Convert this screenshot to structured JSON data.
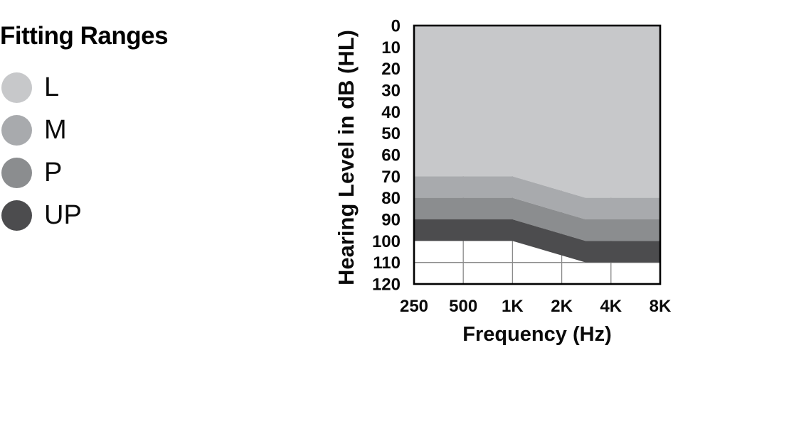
{
  "title": "Fitting Ranges",
  "legend": {
    "items": [
      {
        "label": "L",
        "color": "#c7c8ca"
      },
      {
        "label": "M",
        "color": "#a8aaad"
      },
      {
        "label": "P",
        "color": "#8b8d8f"
      },
      {
        "label": "UP",
        "color": "#4c4c4e"
      }
    ]
  },
  "chart_data": {
    "type": "area",
    "title": "Fitting Ranges",
    "xlabel": "Frequency (Hz)",
    "ylabel": "Hearing Level in dB (HL)",
    "x_categories": [
      "250",
      "500",
      "1K",
      "2K",
      "4K",
      "8K"
    ],
    "x_freqs_hz": [
      250,
      500,
      1000,
      2000,
      4000,
      8000
    ],
    "x_scale": "log2",
    "y_ticks": [
      0,
      10,
      20,
      30,
      40,
      50,
      60,
      70,
      80,
      90,
      100,
      110,
      120
    ],
    "ylim": [
      0,
      120
    ],
    "y_axis_inverted": true,
    "band_breakpoints_hz": [
      250,
      1000,
      2800,
      8000
    ],
    "series": [
      {
        "name": "L",
        "color": "#c7c8ca",
        "top_db": [
          0,
          0,
          0,
          0
        ],
        "bottom_db": [
          70,
          70,
          80,
          80
        ]
      },
      {
        "name": "M",
        "color": "#a8aaad",
        "top_db": [
          70,
          70,
          80,
          80
        ],
        "bottom_db": [
          80,
          80,
          90,
          90
        ]
      },
      {
        "name": "P",
        "color": "#8b8d8f",
        "top_db": [
          80,
          80,
          90,
          90
        ],
        "bottom_db": [
          90,
          90,
          100,
          100
        ]
      },
      {
        "name": "UP",
        "color": "#4c4c4e",
        "top_db": [
          90,
          90,
          100,
          100
        ],
        "bottom_db": [
          100,
          100,
          110,
          110
        ]
      }
    ],
    "gridlines": {
      "vertical_hz": [
        500,
        1000,
        2000,
        4000
      ],
      "horizontal_db": [
        110
      ],
      "color": "#8a8a8a"
    },
    "border_color": "#000000",
    "legend_position": "left"
  }
}
